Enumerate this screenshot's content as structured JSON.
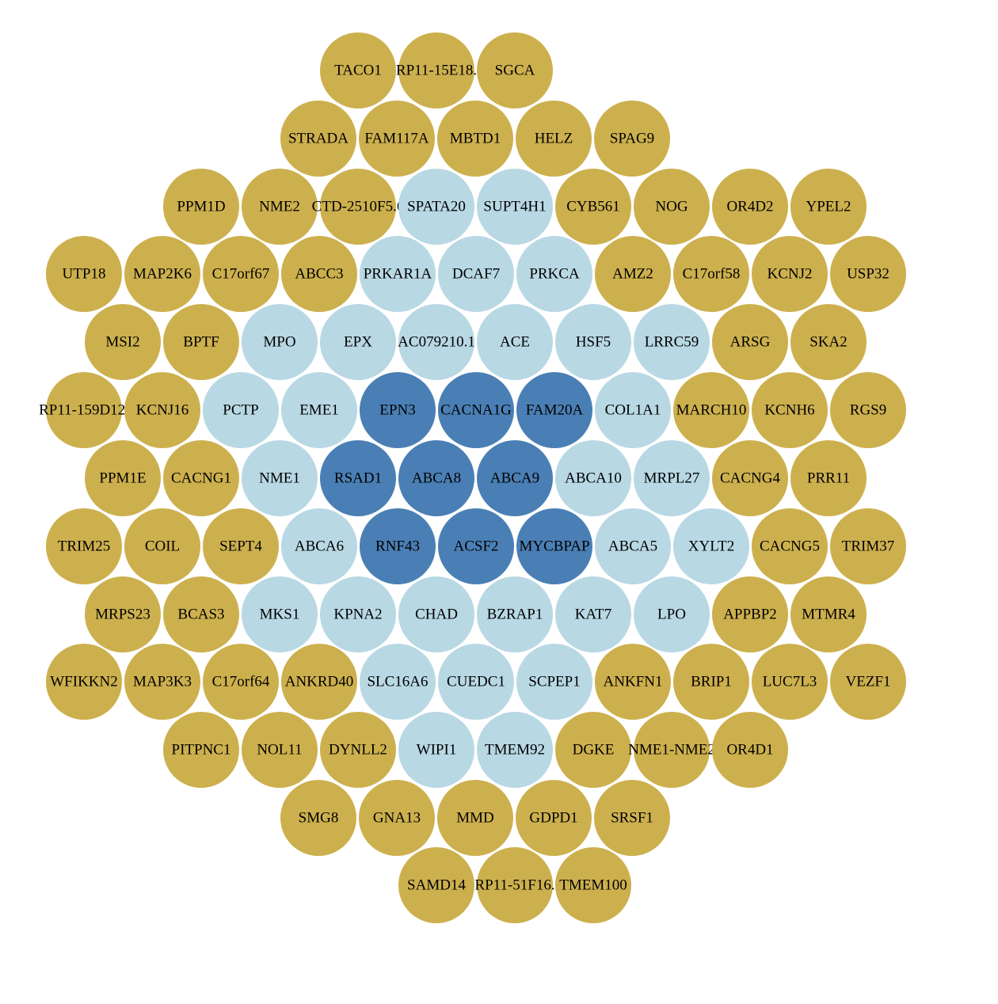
{
  "colors": {
    "core": "#4A7FB5",
    "inner": "#B8D8E4",
    "outer": "#CDB04E",
    "label": "#000000"
  },
  "rows": [
    {
      "nodes": [
        {
          "label": "TACO1",
          "tier": "outer"
        },
        {
          "label": "RP11-15E18.",
          "tier": "outer"
        },
        {
          "label": "SGCA",
          "tier": "outer"
        }
      ]
    },
    {
      "nodes": [
        {
          "label": "STRADA",
          "tier": "outer"
        },
        {
          "label": "FAM117A",
          "tier": "outer"
        },
        {
          "label": "MBTD1",
          "tier": "outer"
        },
        {
          "label": "HELZ",
          "tier": "outer"
        },
        {
          "label": "SPAG9",
          "tier": "outer"
        }
      ]
    },
    {
      "nodes": [
        {
          "label": "PPM1D",
          "tier": "outer"
        },
        {
          "label": "NME2",
          "tier": "outer"
        },
        {
          "label": "CTD-2510F5.6",
          "tier": "outer"
        },
        {
          "label": "SPATA20",
          "tier": "inner"
        },
        {
          "label": "SUPT4H1",
          "tier": "inner"
        },
        {
          "label": "CYB561",
          "tier": "outer"
        },
        {
          "label": "NOG",
          "tier": "outer"
        },
        {
          "label": "OR4D2",
          "tier": "outer"
        },
        {
          "label": "YPEL2",
          "tier": "outer"
        }
      ]
    },
    {
      "nodes": [
        {
          "label": "UTP18",
          "tier": "outer"
        },
        {
          "label": "MAP2K6",
          "tier": "outer"
        },
        {
          "label": "C17orf67",
          "tier": "outer"
        },
        {
          "label": "ABCC3",
          "tier": "outer"
        },
        {
          "label": "PRKAR1A",
          "tier": "inner"
        },
        {
          "label": "DCAF7",
          "tier": "inner"
        },
        {
          "label": "PRKCA",
          "tier": "inner"
        },
        {
          "label": "AMZ2",
          "tier": "outer"
        },
        {
          "label": "C17orf58",
          "tier": "outer"
        },
        {
          "label": "KCNJ2",
          "tier": "outer"
        },
        {
          "label": "USP32",
          "tier": "outer"
        }
      ]
    },
    {
      "nodes": [
        {
          "label": "MSI2",
          "tier": "outer"
        },
        {
          "label": "BPTF",
          "tier": "outer"
        },
        {
          "label": "MPO",
          "tier": "inner"
        },
        {
          "label": "EPX",
          "tier": "inner"
        },
        {
          "label": "AC079210.1",
          "tier": "inner"
        },
        {
          "label": "ACE",
          "tier": "inner"
        },
        {
          "label": "HSF5",
          "tier": "inner"
        },
        {
          "label": "LRRC59",
          "tier": "inner"
        },
        {
          "label": "ARSG",
          "tier": "outer"
        },
        {
          "label": "SKA2",
          "tier": "outer"
        }
      ]
    },
    {
      "nodes": [
        {
          "label": "RP11-159D12.",
          "tier": "outer"
        },
        {
          "label": "KCNJ16",
          "tier": "outer"
        },
        {
          "label": "PCTP",
          "tier": "inner"
        },
        {
          "label": "EME1",
          "tier": "inner"
        },
        {
          "label": "EPN3",
          "tier": "core"
        },
        {
          "label": "CACNA1G",
          "tier": "core"
        },
        {
          "label": "FAM20A",
          "tier": "core"
        },
        {
          "label": "COL1A1",
          "tier": "inner"
        },
        {
          "label": "MARCH10",
          "tier": "outer"
        },
        {
          "label": "KCNH6",
          "tier": "outer"
        },
        {
          "label": "RGS9",
          "tier": "outer"
        }
      ]
    },
    {
      "nodes": [
        {
          "label": "PPM1E",
          "tier": "outer"
        },
        {
          "label": "CACNG1",
          "tier": "outer"
        },
        {
          "label": "NME1",
          "tier": "inner"
        },
        {
          "label": "RSAD1",
          "tier": "core"
        },
        {
          "label": "ABCA8",
          "tier": "core"
        },
        {
          "label": "ABCA9",
          "tier": "core"
        },
        {
          "label": "ABCA10",
          "tier": "inner"
        },
        {
          "label": "MRPL27",
          "tier": "inner"
        },
        {
          "label": "CACNG4",
          "tier": "outer"
        },
        {
          "label": "PRR11",
          "tier": "outer"
        }
      ]
    },
    {
      "nodes": [
        {
          "label": "TRIM25",
          "tier": "outer"
        },
        {
          "label": "COIL",
          "tier": "outer"
        },
        {
          "label": "SEPT4",
          "tier": "outer"
        },
        {
          "label": "ABCA6",
          "tier": "inner"
        },
        {
          "label": "RNF43",
          "tier": "core"
        },
        {
          "label": "ACSF2",
          "tier": "core"
        },
        {
          "label": "MYCBPAP",
          "tier": "core"
        },
        {
          "label": "ABCA5",
          "tier": "inner"
        },
        {
          "label": "XYLT2",
          "tier": "inner"
        },
        {
          "label": "CACNG5",
          "tier": "outer"
        },
        {
          "label": "TRIM37",
          "tier": "outer"
        }
      ]
    },
    {
      "nodes": [
        {
          "label": "MRPS23",
          "tier": "outer"
        },
        {
          "label": "BCAS3",
          "tier": "outer"
        },
        {
          "label": "MKS1",
          "tier": "inner"
        },
        {
          "label": "KPNA2",
          "tier": "inner"
        },
        {
          "label": "CHAD",
          "tier": "inner"
        },
        {
          "label": "BZRAP1",
          "tier": "inner"
        },
        {
          "label": "KAT7",
          "tier": "inner"
        },
        {
          "label": "LPO",
          "tier": "inner"
        },
        {
          "label": "APPBP2",
          "tier": "outer"
        },
        {
          "label": "MTMR4",
          "tier": "outer"
        }
      ]
    },
    {
      "nodes": [
        {
          "label": "WFIKKN2",
          "tier": "outer"
        },
        {
          "label": "MAP3K3",
          "tier": "outer"
        },
        {
          "label": "C17orf64",
          "tier": "outer"
        },
        {
          "label": "ANKRD40",
          "tier": "outer"
        },
        {
          "label": "SLC16A6",
          "tier": "inner"
        },
        {
          "label": "CUEDC1",
          "tier": "inner"
        },
        {
          "label": "SCPEP1",
          "tier": "inner"
        },
        {
          "label": "ANKFN1",
          "tier": "outer"
        },
        {
          "label": "BRIP1",
          "tier": "outer"
        },
        {
          "label": "LUC7L3",
          "tier": "outer"
        },
        {
          "label": "VEZF1",
          "tier": "outer"
        }
      ]
    },
    {
      "nodes": [
        {
          "label": "PITPNC1",
          "tier": "outer"
        },
        {
          "label": "NOL11",
          "tier": "outer"
        },
        {
          "label": "DYNLL2",
          "tier": "outer"
        },
        {
          "label": "WIPI1",
          "tier": "inner"
        },
        {
          "label": "TMEM92",
          "tier": "inner"
        },
        {
          "label": "DGKE",
          "tier": "outer"
        },
        {
          "label": "NME1-NME2",
          "tier": "outer"
        },
        {
          "label": "OR4D1",
          "tier": "outer"
        }
      ]
    },
    {
      "nodes": [
        {
          "label": "SMG8",
          "tier": "outer"
        },
        {
          "label": "GNA13",
          "tier": "outer"
        },
        {
          "label": "MMD",
          "tier": "outer"
        },
        {
          "label": "GDPD1",
          "tier": "outer"
        },
        {
          "label": "SRSF1",
          "tier": "outer"
        }
      ]
    },
    {
      "nodes": [
        {
          "label": "SAMD14",
          "tier": "outer"
        },
        {
          "label": "RP11-51F16.",
          "tier": "outer"
        },
        {
          "label": "TMEM100",
          "tier": "outer"
        }
      ]
    }
  ]
}
